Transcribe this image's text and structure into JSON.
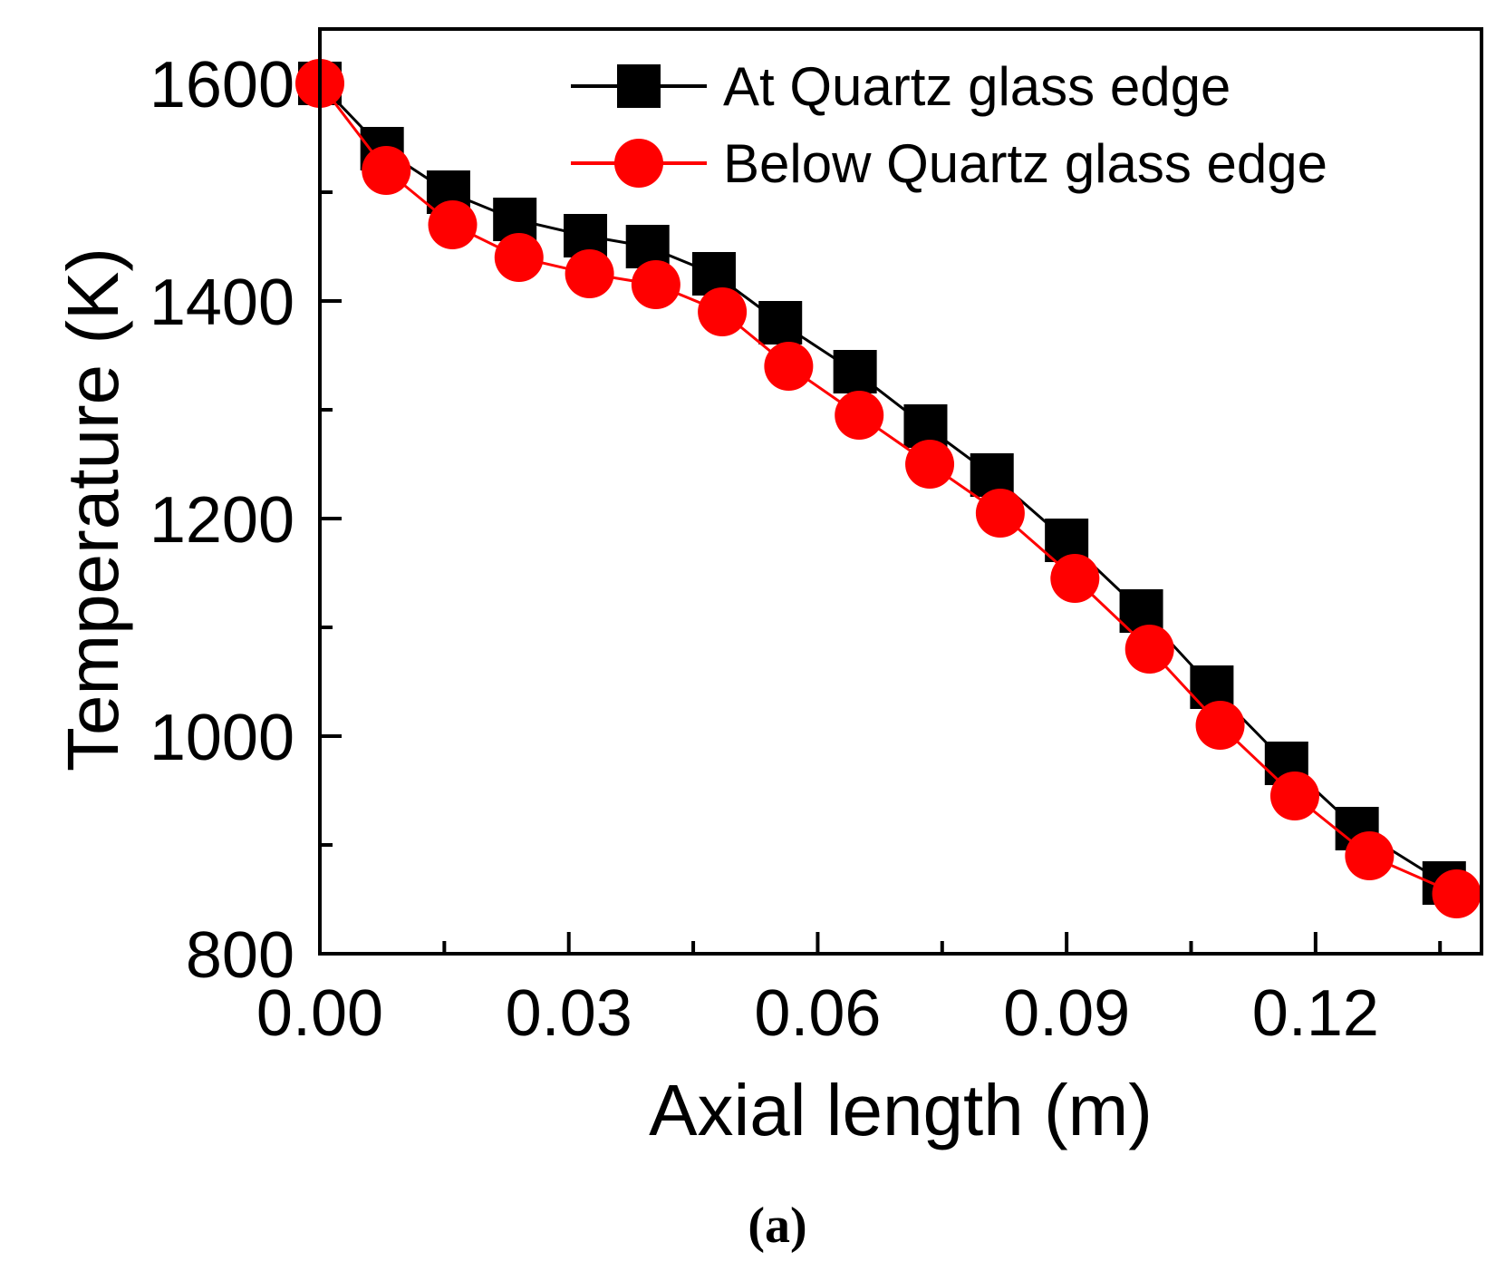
{
  "chart_data": {
    "type": "line",
    "title": "",
    "xlabel": "Axial length (m)",
    "ylabel": "Temperature (K)",
    "xlim": [
      0.0,
      0.14
    ],
    "ylim": [
      800,
      1650
    ],
    "x_ticks": [
      0.0,
      0.03,
      0.06,
      0.09,
      0.12
    ],
    "x_tick_labels": [
      "0.00",
      "0.03",
      "0.06",
      "0.09",
      "0.12"
    ],
    "y_ticks": [
      800,
      1000,
      1200,
      1400,
      1600
    ],
    "y_tick_labels": [
      "800",
      "1000",
      "1200",
      "1400",
      "1600"
    ],
    "grid": false,
    "legend_position": "top-right",
    "caption": "(a)",
    "series": [
      {
        "name": "At Quartz glass edge",
        "color": "#000000",
        "marker": "square",
        "x": [
          0.0,
          0.0075,
          0.0155,
          0.0235,
          0.032,
          0.0395,
          0.0475,
          0.0555,
          0.0645,
          0.073,
          0.081,
          0.09,
          0.099,
          0.1075,
          0.1165,
          0.125,
          0.1355
        ],
        "y": [
          1600,
          1540,
          1500,
          1475,
          1460,
          1450,
          1425,
          1380,
          1335,
          1285,
          1240,
          1180,
          1115,
          1045,
          975,
          915,
          865
        ]
      },
      {
        "name": "Below Quartz glass edge",
        "color": "#ff0000",
        "marker": "circle",
        "x": [
          0.0,
          0.008,
          0.016,
          0.024,
          0.0325,
          0.0405,
          0.0485,
          0.0565,
          0.065,
          0.0735,
          0.082,
          0.091,
          0.1,
          0.1085,
          0.1175,
          0.1265,
          0.137
        ],
        "y": [
          1600,
          1520,
          1470,
          1440,
          1425,
          1415,
          1390,
          1340,
          1295,
          1250,
          1205,
          1145,
          1080,
          1010,
          945,
          890,
          855
        ]
      }
    ]
  }
}
